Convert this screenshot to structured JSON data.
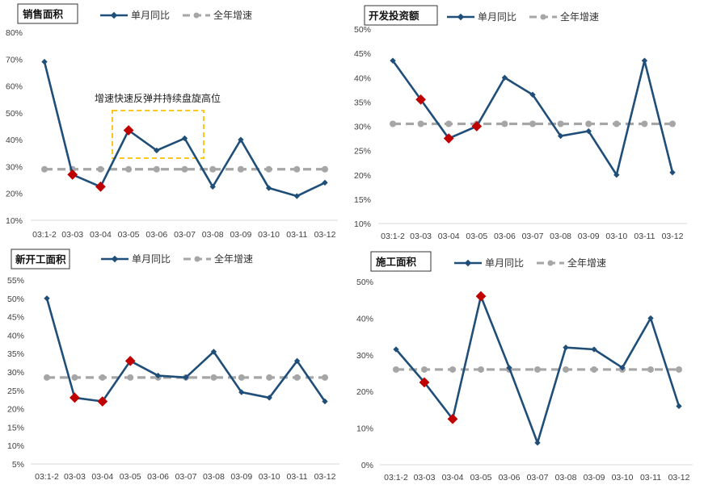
{
  "colors": {
    "monthly": "#1F4E79",
    "annual": "#A6A6A6",
    "highlight": "#C00000",
    "annotation_box": "#FFC000",
    "axis": "#D9D9D9"
  },
  "chart_data": [
    {
      "type": "line",
      "title": "销售面积",
      "categories": [
        "03:1-2",
        "03-03",
        "03-04",
        "03-05",
        "03-06",
        "03-07",
        "03-08",
        "03-09",
        "03-10",
        "03-11",
        "03-12"
      ],
      "y_ticks": [
        "10%",
        "20%",
        "30%",
        "40%",
        "50%",
        "60%",
        "70%",
        "80%"
      ],
      "ylim": [
        10,
        80
      ],
      "series": [
        {
          "name": "单月同比",
          "values": [
            69,
            27,
            22.5,
            43.5,
            36,
            40.5,
            22.5,
            40,
            22,
            19,
            24
          ],
          "highlight_indices": [
            1,
            2,
            3
          ]
        },
        {
          "name": "全年增速",
          "values": [
            29,
            29,
            29,
            29,
            29,
            29,
            29,
            29,
            29,
            29,
            29
          ]
        }
      ],
      "annotation": {
        "text": "增速快速反弹并持续盘旋高位"
      }
    },
    {
      "type": "line",
      "title": "开发投资额",
      "categories": [
        "03:1-2",
        "03-03",
        "03-04",
        "03-05",
        "03-06",
        "03-07",
        "03-08",
        "03-09",
        "03-10",
        "03-11",
        "03-12"
      ],
      "y_ticks": [
        "10%",
        "15%",
        "20%",
        "25%",
        "30%",
        "35%",
        "40%",
        "45%",
        "50%"
      ],
      "ylim": [
        10,
        50
      ],
      "series": [
        {
          "name": "单月同比",
          "values": [
            43.5,
            35.5,
            27.5,
            30,
            40,
            36.5,
            28,
            29,
            20,
            43.5,
            20.5
          ],
          "highlight_indices": [
            1,
            2,
            3
          ]
        },
        {
          "name": "全年增速",
          "values": [
            30.5,
            30.5,
            30.5,
            30.5,
            30.5,
            30.5,
            30.5,
            30.5,
            30.5,
            30.5,
            30.5
          ]
        }
      ]
    },
    {
      "type": "line",
      "title": "新开工面积",
      "categories": [
        "03:1-2",
        "03-03",
        "03-04",
        "03-05",
        "03-06",
        "03-07",
        "03-08",
        "03-09",
        "03-10",
        "03-11",
        "03-12"
      ],
      "y_ticks": [
        "5%",
        "10%",
        "15%",
        "20%",
        "25%",
        "30%",
        "35%",
        "40%",
        "45%",
        "50%",
        "55%"
      ],
      "ylim": [
        5,
        55
      ],
      "series": [
        {
          "name": "单月同比",
          "values": [
            50,
            23,
            22,
            33,
            29,
            28.5,
            35.5,
            24.5,
            23,
            33,
            22
          ],
          "highlight_indices": [
            1,
            2,
            3
          ]
        },
        {
          "name": "全年增速",
          "values": [
            28.5,
            28.5,
            28.5,
            28.5,
            28.5,
            28.5,
            28.5,
            28.5,
            28.5,
            28.5,
            28.5
          ]
        }
      ]
    },
    {
      "type": "line",
      "title": "施工面积",
      "categories": [
        "03:1-2",
        "03-03",
        "03-04",
        "03-05",
        "03-06",
        "03-07",
        "03-08",
        "03-09",
        "03-10",
        "03-11",
        "03-12"
      ],
      "y_ticks": [
        "0%",
        "10%",
        "20%",
        "30%",
        "40%",
        "50%"
      ],
      "ylim": [
        0,
        50
      ],
      "series": [
        {
          "name": "单月同比",
          "values": [
            31.5,
            22.5,
            12.5,
            46,
            26.5,
            6,
            32,
            31.5,
            26.5,
            40,
            16
          ],
          "highlight_indices": [
            1,
            2,
            3
          ]
        },
        {
          "name": "全年增速",
          "values": [
            26,
            26,
            26,
            26,
            26,
            26,
            26,
            26,
            26,
            26,
            26
          ]
        }
      ]
    }
  ]
}
